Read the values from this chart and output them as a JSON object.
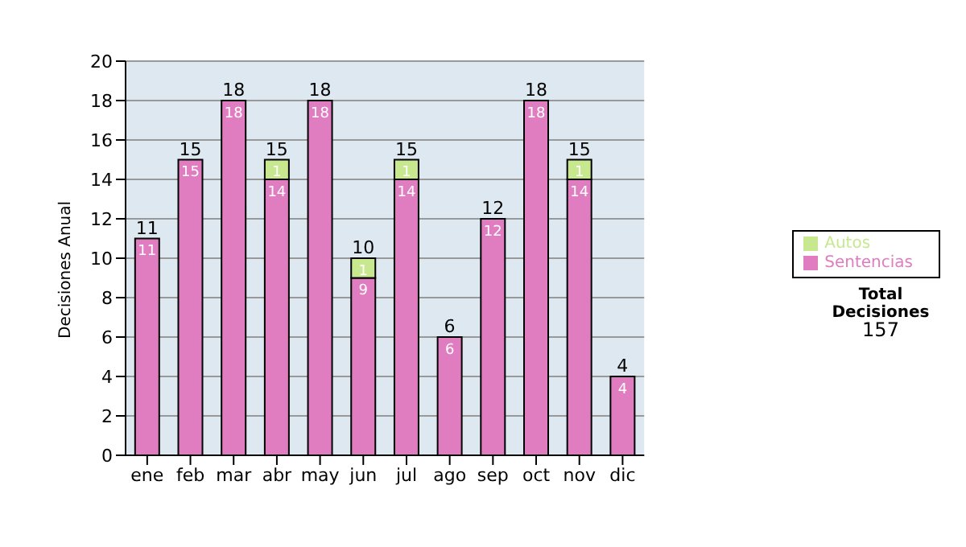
{
  "chart_data": {
    "type": "bar",
    "stacked": true,
    "ylabel": "Decisiones Anual",
    "categories": [
      "ene",
      "feb",
      "mar",
      "abr",
      "may",
      "jun",
      "jul",
      "ago",
      "sep",
      "oct",
      "nov",
      "dic"
    ],
    "series": [
      {
        "name": "Sentencias",
        "color": "#e07cc0",
        "values": [
          11,
          15,
          18,
          14,
          18,
          9,
          14,
          6,
          12,
          18,
          14,
          4
        ]
      },
      {
        "name": "Autos",
        "color": "#c8e890",
        "values": [
          null,
          null,
          null,
          1,
          null,
          1,
          1,
          null,
          null,
          null,
          1,
          null
        ]
      }
    ],
    "totals": [
      "11",
      "15",
      "18",
      "15",
      "18",
      "10",
      "15",
      "6",
      "12",
      "18",
      "15",
      "4"
    ],
    "data_labels": true,
    "ylim": [
      0,
      20
    ],
    "yticks": [
      0,
      2,
      4,
      6,
      8,
      10,
      12,
      14,
      16,
      18,
      20
    ],
    "grid": "y",
    "legend": "right",
    "annotations": [
      "Total Decisiones",
      "157"
    ]
  }
}
